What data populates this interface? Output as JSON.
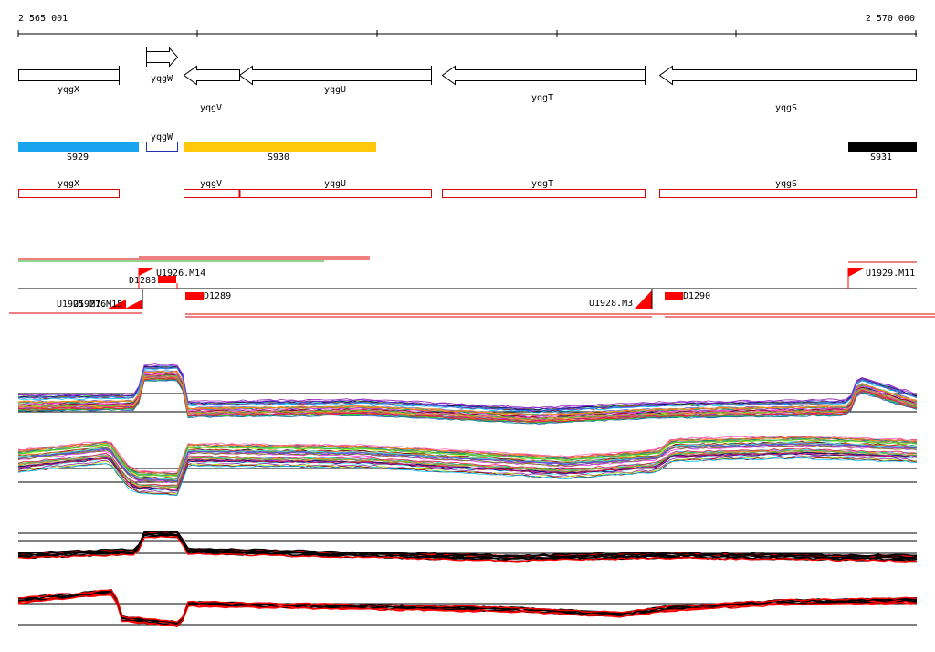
{
  "ruler": {
    "start_label": "2 565 001",
    "end_label": "2 570 000"
  },
  "genes": [
    {
      "name": "yqgX",
      "strand": "+"
    },
    {
      "name": "yqgW",
      "strand": "+"
    },
    {
      "name": "yqgV",
      "strand": "-"
    },
    {
      "name": "yqgU",
      "strand": "-"
    },
    {
      "name": "yqgT",
      "strand": "-"
    },
    {
      "name": "yqgS",
      "strand": "-"
    }
  ],
  "segments": [
    {
      "name": "S929",
      "color": "#1aa3ee"
    },
    {
      "name": "yqgW",
      "color": "#2233aa"
    },
    {
      "name": "S930",
      "color": "#ffc80a"
    },
    {
      "name": "S931",
      "color": "#000000"
    }
  ],
  "gene_boxes": [
    "yqgX",
    "yqgV",
    "yqgU",
    "yqgT",
    "yqgS"
  ],
  "features": {
    "top": [
      "D1288",
      "U1926.M14",
      "U1929.M11"
    ],
    "bottom": [
      "U1925.M16",
      "U1927.M15",
      "D1289",
      "U1928.M3",
      "D1290"
    ]
  },
  "colors": {
    "gene_box": "#e00000",
    "feature": "#ff0000"
  }
}
